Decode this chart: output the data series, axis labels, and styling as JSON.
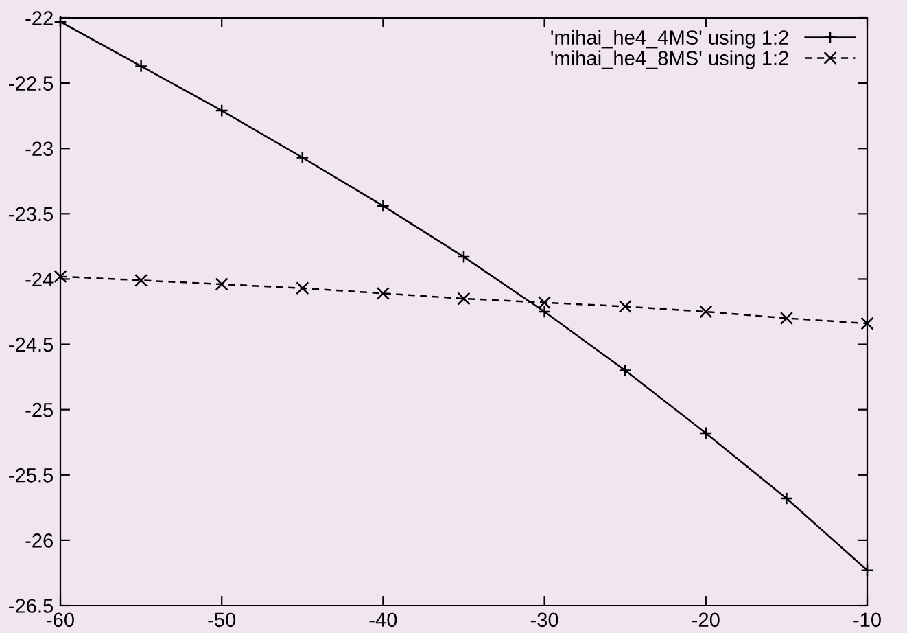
{
  "chart_data": {
    "type": "line",
    "x": [
      -60,
      -55,
      -50,
      -45,
      -40,
      -35,
      -30,
      -25,
      -20,
      -15,
      -10
    ],
    "series": [
      {
        "name": "'mihai_he4_4MS' using 1:2",
        "color": "#000000",
        "marker": "plus",
        "line_style": "solid",
        "values": [
          -22.03,
          -22.37,
          -22.71,
          -23.07,
          -23.44,
          -23.83,
          -24.25,
          -24.7,
          -25.18,
          -25.68,
          -26.23
        ]
      },
      {
        "name": "'mihai_he4_8MS' using 1:2",
        "color": "#000000",
        "marker": "cross",
        "line_style": "dashed",
        "values": [
          -23.98,
          -24.01,
          -24.04,
          -24.07,
          -24.11,
          -24.15,
          -24.18,
          -24.21,
          -24.25,
          -24.3,
          -24.34
        ]
      }
    ],
    "xlim": [
      -60,
      -10
    ],
    "xticks": [
      -60,
      -50,
      -40,
      -30,
      -20,
      -10
    ],
    "ylim": [
      -26.5,
      -22
    ],
    "yticks": [
      -26.5,
      -26,
      -25.5,
      -25,
      -24.5,
      -24,
      -23.5,
      -23,
      -22.5,
      -22
    ],
    "grid": false,
    "legend": "top right"
  }
}
